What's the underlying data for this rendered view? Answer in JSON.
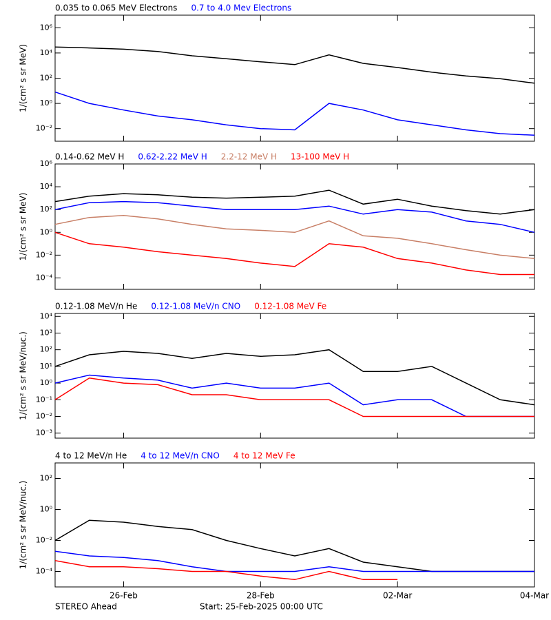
{
  "chart_data": [
    {
      "type": "line",
      "ylabel": "1/(cm² s sr MeV)",
      "log": true,
      "x": [
        0,
        0.5,
        1,
        1.5,
        2,
        2.5,
        3,
        3.5,
        4,
        4.5,
        5,
        5.5,
        6,
        6.5,
        7
      ],
      "xlim": [
        0,
        7
      ],
      "ylim": [
        0.001,
        10000000
      ],
      "yticks": [
        {
          "value": 0.01,
          "label": "10⁻²"
        },
        {
          "value": 1,
          "label": "10⁰"
        },
        {
          "value": 100,
          "label": "10²"
        },
        {
          "value": 10000,
          "label": "10⁴"
        },
        {
          "value": 1000000,
          "label": "10⁶"
        }
      ],
      "series": [
        {
          "name": "0.035 to 0.065 MeV Electrons",
          "color": "#000000",
          "values": [
            30000,
            25000,
            20000,
            13000,
            6000,
            3500,
            2000,
            1200,
            7000,
            1500,
            700,
            300,
            150,
            90,
            40
          ]
        },
        {
          "name": "0.7 to 4.0 Mev Electrons",
          "color": "#0000ff",
          "values": [
            8,
            1,
            0.3,
            0.1,
            0.05,
            0.02,
            0.01,
            0.008,
            1,
            0.3,
            0.05,
            0.02,
            0.008,
            0.004,
            0.003
          ]
        }
      ]
    },
    {
      "type": "line",
      "ylabel": "1/(cm² s sr MeV)",
      "log": true,
      "x": [
        0,
        0.5,
        1,
        1.5,
        2,
        2.5,
        3,
        3.5,
        4,
        4.5,
        5,
        5.5,
        6,
        6.5,
        7
      ],
      "xlim": [
        0,
        7
      ],
      "ylim": [
        1e-05,
        1000000
      ],
      "yticks": [
        {
          "value": 0.0001,
          "label": "10⁻⁴"
        },
        {
          "value": 0.01,
          "label": "10⁻²"
        },
        {
          "value": 1,
          "label": "10⁰"
        },
        {
          "value": 100,
          "label": "10²"
        },
        {
          "value": 10000,
          "label": "10⁴"
        },
        {
          "value": 1000000,
          "label": "10⁶"
        }
      ],
      "series": [
        {
          "name": "0.14-0.62 MeV H",
          "color": "#000000",
          "values": [
            500,
            1500,
            2500,
            2000,
            1200,
            1000,
            1200,
            1500,
            5000,
            300,
            800,
            200,
            80,
            40,
            100
          ]
        },
        {
          "name": "0.62-2.22 MeV H",
          "color": "#0000ff",
          "values": [
            100,
            400,
            500,
            400,
            200,
            100,
            100,
            100,
            200,
            40,
            100,
            60,
            10,
            5,
            1
          ]
        },
        {
          "name": "2.2-12 MeV H",
          "color": "#c87f66",
          "values": [
            5,
            20,
            30,
            15,
            5,
            2,
            1.5,
            1,
            10,
            0.5,
            0.3,
            0.1,
            0.03,
            0.01,
            0.005
          ]
        },
        {
          "name": "13-100 MeV H",
          "color": "#ff0000",
          "values": [
            1,
            0.1,
            0.05,
            0.02,
            0.01,
            0.005,
            0.002,
            0.001,
            0.1,
            0.05,
            0.005,
            0.002,
            0.0005,
            0.0002,
            0.0002
          ]
        }
      ]
    },
    {
      "type": "line",
      "ylabel": "1/(cm² s sr MeV/nuc.)",
      "log": true,
      "x": [
        0,
        0.5,
        1,
        1.5,
        2,
        2.5,
        3,
        3.5,
        4,
        4.5,
        5,
        5.5,
        6,
        6.5,
        7
      ],
      "xlim": [
        0,
        7
      ],
      "ylim": [
        0.0005,
        15000
      ],
      "yticks": [
        {
          "value": 0.001,
          "label": "10⁻³"
        },
        {
          "value": 0.01,
          "label": "10⁻²"
        },
        {
          "value": 0.1,
          "label": "10⁻¹"
        },
        {
          "value": 1,
          "label": "10⁰"
        },
        {
          "value": 10,
          "label": "10¹"
        },
        {
          "value": 100,
          "label": "10²"
        },
        {
          "value": 1000,
          "label": "10³"
        },
        {
          "value": 10000,
          "label": "10⁴"
        }
      ],
      "series": [
        {
          "name": "0.12-1.08 MeV/n He",
          "color": "#000000",
          "values": [
            10,
            50,
            80,
            60,
            30,
            60,
            40,
            50,
            100,
            5,
            5,
            10,
            1,
            0.1,
            0.05
          ]
        },
        {
          "name": "0.12-1.08 MeV/n CNO",
          "color": "#0000ff",
          "values": [
            1,
            3,
            2,
            1.5,
            0.5,
            1,
            0.5,
            0.5,
            1,
            0.05,
            0.1,
            0.1,
            0.01,
            0.01,
            0.01
          ]
        },
        {
          "name": "0.12-1.08 MeV Fe",
          "color": "#ff0000",
          "values": [
            0.1,
            2,
            1,
            0.8,
            0.2,
            0.2,
            0.1,
            0.1,
            0.1,
            0.01,
            0.01,
            0.01,
            0.01,
            0.01,
            0.01
          ]
        }
      ]
    },
    {
      "type": "line",
      "ylabel": "1/(cm² s sr MeV/nuc.)",
      "log": true,
      "x": [
        0,
        0.5,
        1,
        1.5,
        2,
        2.5,
        3,
        3.5,
        4,
        4.5,
        5,
        5.5,
        6,
        6.5,
        7
      ],
      "xlim": [
        0,
        7
      ],
      "xticks": [
        {
          "value": 1,
          "label": "26-Feb"
        },
        {
          "value": 3,
          "label": "28-Feb"
        },
        {
          "value": 5,
          "label": "02-Mar"
        },
        {
          "value": 7,
          "label": "04-Mar"
        }
      ],
      "ylim": [
        1e-05,
        1000
      ],
      "yticks": [
        {
          "value": 0.0001,
          "label": "10⁻⁴"
        },
        {
          "value": 0.01,
          "label": "10⁻²"
        },
        {
          "value": 1,
          "label": "10⁰"
        },
        {
          "value": 100,
          "label": "10²"
        }
      ],
      "series": [
        {
          "name": "4 to 12 MeV/n He",
          "color": "#000000",
          "values": [
            0.01,
            0.2,
            0.15,
            0.08,
            0.05,
            0.01,
            0.003,
            0.001,
            0.003,
            0.0004,
            0.0002,
            0.0001,
            0.0001,
            0.0001,
            0.0001
          ]
        },
        {
          "name": "4 to 12 MeV/n CNO",
          "color": "#0000ff",
          "values": [
            0.002,
            0.001,
            0.0008,
            0.0005,
            0.0002,
            0.0001,
            0.0001,
            0.0001,
            0.0002,
            0.0001,
            0.0001,
            0.0001,
            0.0001,
            0.0001,
            0.0001
          ]
        },
        {
          "name": "4 to 12 MeV Fe",
          "color": "#ff0000",
          "values": [
            0.0005,
            0.0002,
            0.0002,
            0.00015,
            0.0001,
            0.0001,
            5e-05,
            3e-05,
            0.0001,
            3e-05,
            3e-05,
            null,
            null,
            null,
            null
          ]
        }
      ]
    }
  ],
  "footer": {
    "left": "STEREO Ahead",
    "right": "Start: 25-Feb-2025 00:00 UTC"
  }
}
